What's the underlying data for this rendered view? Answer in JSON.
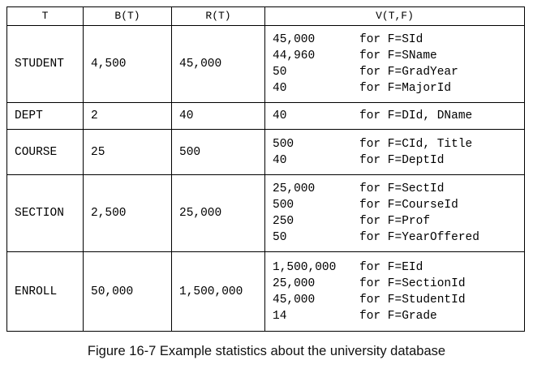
{
  "table": {
    "headers": [
      "T",
      "B(T)",
      "R(T)",
      "V(T,F)"
    ],
    "rows": [
      {
        "t": "STUDENT",
        "b": "4,500",
        "r": "45,000",
        "v": [
          {
            "value": "45,000",
            "field": "for F=SId"
          },
          {
            "value": "44,960",
            "field": "for F=SName"
          },
          {
            "value": "50",
            "field": "for F=GradYear"
          },
          {
            "value": "40",
            "field": "for F=MajorId"
          }
        ]
      },
      {
        "t": "DEPT",
        "b": "2",
        "r": "40",
        "v": [
          {
            "value": "40",
            "field": "for F=DId, DName"
          }
        ]
      },
      {
        "t": "COURSE",
        "b": "25",
        "r": "500",
        "v": [
          {
            "value": "500",
            "field": "for F=CId, Title"
          },
          {
            "value": "40",
            "field": "for F=DeptId"
          }
        ]
      },
      {
        "t": "SECTION",
        "b": "2,500",
        "r": "25,000",
        "v": [
          {
            "value": "25,000",
            "field": "for F=SectId"
          },
          {
            "value": "500",
            "field": "for F=CourseId"
          },
          {
            "value": "250",
            "field": "for F=Prof"
          },
          {
            "value": "50",
            "field": "for F=YearOffered"
          }
        ]
      },
      {
        "t": "ENROLL",
        "b": "50,000",
        "r": "1,500,000",
        "v": [
          {
            "value": "1,500,000",
            "field": "for F=EId"
          },
          {
            "value": "25,000",
            "field": "for F=SectionId"
          },
          {
            "value": "45,000",
            "field": "for F=StudentId"
          },
          {
            "value": "14",
            "field": "for F=Grade"
          }
        ]
      }
    ]
  },
  "caption": "Figure 16-7 Example statistics about the university database"
}
